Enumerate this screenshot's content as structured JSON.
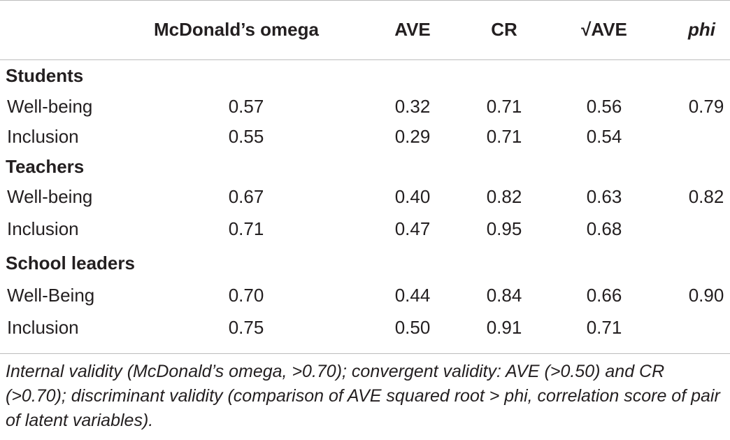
{
  "table": {
    "headers": {
      "col1": "McDonald’s omega",
      "col2": "AVE",
      "col3": "CR",
      "col4": "√AVE",
      "col5": "phi"
    },
    "groups": [
      {
        "title": "Students",
        "rows": [
          {
            "label": "Well-being",
            "omega": "0.57",
            "ave": "0.32",
            "cr": "0.71",
            "sqrt_ave": "0.56",
            "phi": "0.79"
          },
          {
            "label": "Inclusion",
            "omega": "0.55",
            "ave": "0.29",
            "cr": "0.71",
            "sqrt_ave": "0.54",
            "phi": ""
          }
        ]
      },
      {
        "title": "Teachers",
        "rows": [
          {
            "label": "Well-being",
            "omega": "0.67",
            "ave": "0.40",
            "cr": "0.82",
            "sqrt_ave": "0.63",
            "phi": "0.82"
          },
          {
            "label": "Inclusion",
            "omega": "0.71",
            "ave": "0.47",
            "cr": "0.95",
            "sqrt_ave": "0.68",
            "phi": ""
          }
        ]
      },
      {
        "title": "School leaders",
        "rows": [
          {
            "label": "Well-Being",
            "omega": "0.70",
            "ave": "0.44",
            "cr": "0.84",
            "sqrt_ave": "0.66",
            "phi": "0.90"
          },
          {
            "label": "Inclusion",
            "omega": "0.75",
            "ave": "0.50",
            "cr": "0.91",
            "sqrt_ave": "0.71",
            "phi": ""
          }
        ]
      }
    ],
    "footnote": "Internal validity (McDonald’s omega, >0.70); convergent validity: AVE (>0.50) and CR (>0.70); discriminant validity (comparison of AVE squared root > phi, correlation score of pair of latent variables)."
  }
}
